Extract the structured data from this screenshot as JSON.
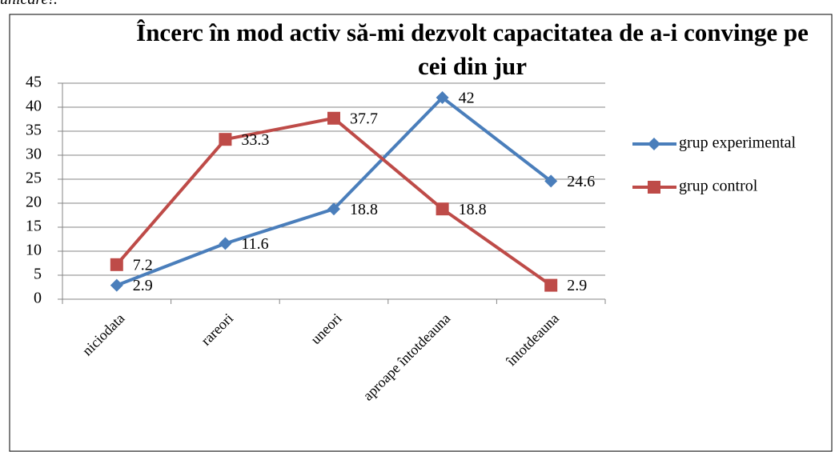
{
  "caption": "unicare!.",
  "chart_data": {
    "type": "line",
    "title": "Încerc în mod activ să-mi dezvolt capacitatea de a-i convinge pe cei din jur",
    "categories": [
      "niciodata",
      "rareori",
      "uneori",
      "aproape întotdeauna",
      "întotdeauna"
    ],
    "series": [
      {
        "name": "grup experimental",
        "color": "#4a7ebb",
        "marker": "diamond",
        "values": [
          2.9,
          11.6,
          18.8,
          42,
          24.6
        ]
      },
      {
        "name": "grup control",
        "color": "#be4b48",
        "marker": "square",
        "values": [
          7.2,
          33.3,
          37.7,
          18.8,
          2.9
        ]
      }
    ],
    "ylim": [
      0,
      45
    ],
    "yticks": [
      0,
      5,
      10,
      15,
      20,
      25,
      30,
      35,
      40,
      45
    ],
    "grid": true,
    "legend": "right"
  }
}
